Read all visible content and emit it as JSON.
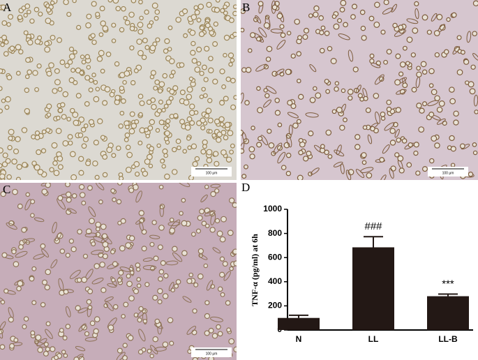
{
  "panels": [
    {
      "label": "A",
      "scale_bar": "100 μm"
    },
    {
      "label": "B",
      "scale_bar": "100 μm"
    },
    {
      "label": "C",
      "scale_bar": "100 μm"
    }
  ],
  "chart_data": {
    "type": "bar",
    "panel_label": "D",
    "y_label": "TNF-α (pg/ml) at 6h",
    "categories": [
      "N",
      "LL",
      "LL-B"
    ],
    "values": [
      100,
      685,
      280
    ],
    "errors": [
      22,
      88,
      18
    ],
    "annotations": [
      null,
      "###",
      "***"
    ],
    "color": "#231815",
    "ylim": [
      0,
      1000
    ],
    "yticks": [
      0,
      200,
      400,
      600,
      800,
      1000
    ]
  }
}
